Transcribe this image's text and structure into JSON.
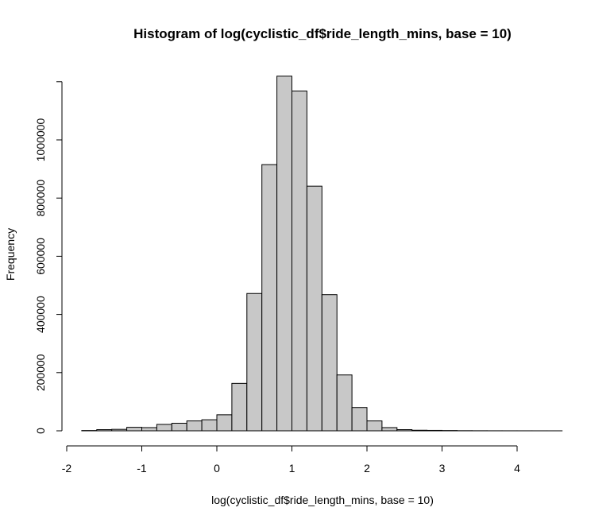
{
  "chart_data": {
    "type": "bar",
    "title": "Histogram of log(cyclistic_df$ride_length_mins, base = 10)",
    "xlabel": "log(cyclistic_df$ride_length_mins, base = 10)",
    "ylabel": "Frequency",
    "xlim": [
      -2,
      4.6
    ],
    "ylim": [
      0,
      1200000
    ],
    "x_ticks": [
      "-2",
      "-1",
      "0",
      "1",
      "2",
      "3",
      "4"
    ],
    "x_tick_values": [
      -2,
      -1,
      0,
      1,
      2,
      3,
      4
    ],
    "y_ticks": [
      "0",
      "200000",
      "400000",
      "600000",
      "800000",
      "1000000"
    ],
    "y_tick_values": [
      0,
      200000,
      400000,
      600000,
      800000,
      1000000
    ],
    "bin_width": 0.2,
    "bin_edges_start": -1.8,
    "bins": [
      {
        "x0": -1.8,
        "x1": -1.6,
        "value": 1000
      },
      {
        "x0": -1.6,
        "x1": -1.4,
        "value": 4000
      },
      {
        "x0": -1.4,
        "x1": -1.2,
        "value": 5000
      },
      {
        "x0": -1.2,
        "x1": -1.0,
        "value": 12000
      },
      {
        "x0": -1.0,
        "x1": -0.8,
        "value": 11000
      },
      {
        "x0": -0.8,
        "x1": -0.6,
        "value": 22000
      },
      {
        "x0": -0.6,
        "x1": -0.4,
        "value": 26000
      },
      {
        "x0": -0.4,
        "x1": -0.2,
        "value": 34000
      },
      {
        "x0": -0.2,
        "x1": 0.0,
        "value": 38000
      },
      {
        "x0": 0.0,
        "x1": 0.2,
        "value": 55000
      },
      {
        "x0": 0.2,
        "x1": 0.4,
        "value": 163000
      },
      {
        "x0": 0.4,
        "x1": 0.6,
        "value": 472000
      },
      {
        "x0": 0.6,
        "x1": 0.8,
        "value": 915000
      },
      {
        "x0": 0.8,
        "x1": 1.0,
        "value": 1219000
      },
      {
        "x0": 1.0,
        "x1": 1.2,
        "value": 1168000
      },
      {
        "x0": 1.2,
        "x1": 1.4,
        "value": 841000
      },
      {
        "x0": 1.4,
        "x1": 1.6,
        "value": 468000
      },
      {
        "x0": 1.6,
        "x1": 1.8,
        "value": 192000
      },
      {
        "x0": 1.8,
        "x1": 2.0,
        "value": 80000
      },
      {
        "x0": 2.0,
        "x1": 2.2,
        "value": 34000
      },
      {
        "x0": 2.2,
        "x1": 2.4,
        "value": 11000
      },
      {
        "x0": 2.4,
        "x1": 2.6,
        "value": 4000
      },
      {
        "x0": 2.6,
        "x1": 2.8,
        "value": 2000
      },
      {
        "x0": 2.8,
        "x1": 3.0,
        "value": 1500
      },
      {
        "x0": 3.0,
        "x1": 3.2,
        "value": 1000
      },
      {
        "x0": 3.2,
        "x1": 3.4,
        "value": 500
      },
      {
        "x0": 3.4,
        "x1": 3.6,
        "value": 300
      },
      {
        "x0": 3.6,
        "x1": 3.8,
        "value": 200
      },
      {
        "x0": 3.8,
        "x1": 4.0,
        "value": 150
      },
      {
        "x0": 4.0,
        "x1": 4.2,
        "value": 100
      },
      {
        "x0": 4.2,
        "x1": 4.4,
        "value": 80
      },
      {
        "x0": 4.4,
        "x1": 4.6,
        "value": 60
      }
    ],
    "bar_fill": "#c8c8c8",
    "bar_stroke": "#000000",
    "grid": false,
    "legend": "none"
  }
}
